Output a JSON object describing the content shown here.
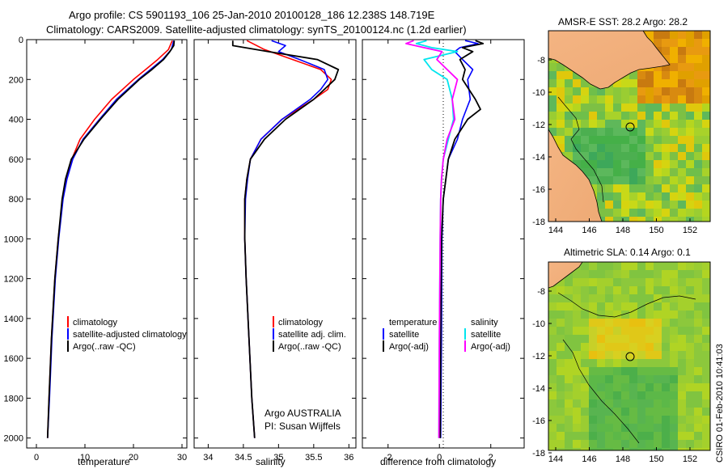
{
  "header": {
    "line1": "Argo profile: CS 5901193_106 25-Jan-2010 20100128_186 12.238S 148.719E",
    "line2": "Climatology: CARS2009. Satellite-adjusted climatology: synTS_20100124.nc (1.2d earlier)"
  },
  "colors": {
    "climatology": "#ff0000",
    "satellite": "#0000ff",
    "argo": "#000000",
    "salinity_satellite": "#00e5ee",
    "salinity_argo": "#ff00ff",
    "land": "#f4b482"
  },
  "chart_data": [
    {
      "type": "line",
      "id": "temperature",
      "xlabel": "temperature",
      "ylabel": "",
      "xlim": [
        -2,
        31
      ],
      "ylim": [
        2050,
        0
      ],
      "xticks": [
        "0",
        "10",
        "20",
        "30"
      ],
      "yticks": [
        "0",
        "200",
        "400",
        "600",
        "800",
        "1000",
        "1200",
        "1400",
        "1600",
        "1800",
        "2000"
      ],
      "legend": [
        "climatology",
        "satellite-adjusted climatology",
        "Argo(..raw -QC)"
      ],
      "series": [
        {
          "name": "climatology",
          "depth": [
            5,
            50,
            100,
            150,
            200,
            300,
            400,
            500,
            600,
            700,
            800,
            1000,
            1200,
            1500,
            1800,
            2000
          ],
          "values": [
            28.0,
            27.2,
            25.0,
            22.5,
            20.0,
            15.5,
            12.0,
            9.0,
            7.3,
            6.2,
            5.4,
            4.5,
            3.8,
            3.1,
            2.6,
            2.3
          ]
        },
        {
          "name": "satellite-adjusted climatology",
          "depth": [
            5,
            50,
            100,
            150,
            200,
            300,
            400,
            500,
            600,
            700,
            800,
            1000,
            1200,
            1500,
            1800,
            2000
          ],
          "values": [
            28.3,
            27.8,
            26.0,
            23.5,
            21.0,
            16.5,
            13.0,
            9.6,
            7.5,
            6.3,
            5.5,
            4.6,
            3.9,
            3.2,
            2.7,
            2.3
          ]
        },
        {
          "name": "Argo(..raw -QC)",
          "depth": [
            5,
            30,
            60,
            100,
            150,
            200,
            300,
            400,
            500,
            600,
            700,
            800,
            1000,
            1200,
            1500,
            1800,
            2000
          ],
          "values": [
            28.4,
            28.3,
            27.5,
            26.2,
            23.8,
            21.2,
            16.8,
            13.2,
            9.8,
            7.2,
            6.0,
            5.3,
            4.5,
            3.8,
            3.1,
            2.6,
            2.3
          ]
        }
      ]
    },
    {
      "type": "line",
      "id": "salinity",
      "xlabel": "salinity",
      "ylabel": "",
      "xlim": [
        33.8,
        36.1
      ],
      "ylim": [
        2050,
        0
      ],
      "xticks": [
        "34",
        "34.5",
        "35",
        "35.5",
        "36"
      ],
      "legend": [
        "climatology",
        "satellite adj. clim.",
        "Argo(..raw -QC)"
      ],
      "series": [
        {
          "name": "climatology",
          "depth": [
            5,
            50,
            100,
            150,
            200,
            250,
            300,
            400,
            500,
            600,
            700,
            800,
            1000,
            1200,
            1500,
            1800,
            2000
          ],
          "values": [
            34.55,
            34.8,
            35.2,
            35.6,
            35.75,
            35.7,
            35.5,
            35.05,
            34.75,
            34.6,
            34.55,
            34.52,
            34.52,
            34.54,
            34.58,
            34.62,
            34.66
          ]
        },
        {
          "name": "satellite adj. clim.",
          "depth": [
            5,
            30,
            60,
            100,
            150,
            200,
            250,
            300,
            400,
            500,
            600,
            700,
            800,
            1000,
            1200,
            1500,
            1800,
            2000
          ],
          "values": [
            34.9,
            35.1,
            35.0,
            35.3,
            35.65,
            35.7,
            35.6,
            35.45,
            35.05,
            34.75,
            34.6,
            34.56,
            34.53,
            34.52,
            34.54,
            34.58,
            34.62,
            34.66
          ]
        },
        {
          "name": "Argo(..raw -QC)",
          "depth": [
            5,
            30,
            60,
            100,
            150,
            200,
            250,
            300,
            400,
            500,
            600,
            700,
            800,
            1000,
            1200,
            1500,
            1800,
            2000
          ],
          "values": [
            34.35,
            34.35,
            34.85,
            35.55,
            35.85,
            35.8,
            35.65,
            35.5,
            35.1,
            34.8,
            34.6,
            34.55,
            34.52,
            34.52,
            34.54,
            34.58,
            34.62,
            34.66
          ]
        }
      ],
      "annotations": [
        "Argo AUSTRALIA",
        "PI: Susan Wijffels"
      ]
    },
    {
      "type": "line",
      "id": "difference",
      "xlabel": "difference from climatology",
      "ylabel": "",
      "xlim": [
        -3,
        3.3
      ],
      "ylim": [
        2050,
        0
      ],
      "xticks": [
        "-2",
        "0",
        "2"
      ],
      "legend_headers": [
        "temperature",
        "salinity"
      ],
      "legend": [
        "satellite",
        "Argo(-adj)",
        "satellite",
        "Argo(-adj)"
      ],
      "series": [
        {
          "name": "temperature satellite",
          "depth": [
            5,
            20,
            40,
            60,
            100,
            150,
            200,
            300,
            400,
            500,
            600,
            700,
            800,
            1000,
            1500,
            2000
          ],
          "values": [
            1.0,
            1.5,
            0.8,
            0.6,
            0.9,
            1.3,
            1.1,
            1.2,
            0.9,
            0.7,
            0.35,
            0.25,
            0.15,
            0.1,
            0.08,
            0.05
          ]
        },
        {
          "name": "temperature Argo(-adj)",
          "depth": [
            5,
            20,
            40,
            60,
            100,
            150,
            200,
            300,
            350,
            400,
            500,
            600,
            700,
            800,
            1000,
            1500,
            2000
          ],
          "values": [
            1.4,
            1.7,
            0.9,
            1.3,
            0.8,
            1.0,
            0.9,
            1.4,
            1.6,
            1.1,
            0.6,
            0.35,
            0.25,
            0.15,
            0.08,
            0.05,
            0.03
          ]
        },
        {
          "name": "salinity satellite",
          "depth": [
            5,
            20,
            40,
            60,
            100,
            150,
            200,
            300,
            400,
            500,
            600,
            700,
            800,
            1000,
            1500,
            2000
          ],
          "values": [
            -0.5,
            -0.9,
            -0.3,
            0.7,
            -0.6,
            -0.3,
            0.3,
            0.5,
            0.55,
            0.35,
            0.15,
            0.08,
            0.05,
            0.03,
            0.0,
            -0.02
          ]
        },
        {
          "name": "salinity Argo(-adj)",
          "depth": [
            5,
            20,
            40,
            60,
            100,
            150,
            200,
            300,
            400,
            500,
            600,
            700,
            800,
            1000,
            1500,
            2000
          ],
          "values": [
            -1.0,
            -1.3,
            -0.6,
            0.1,
            -0.1,
            0.3,
            0.7,
            0.5,
            0.6,
            0.3,
            0.15,
            0.08,
            0.05,
            0.03,
            0.0,
            -0.02
          ]
        }
      ]
    },
    {
      "type": "heatmap",
      "id": "sst-map",
      "title": "AMSR-E SST: 28.2 Argo: 28.2",
      "xticks": [
        "144",
        "146",
        "148",
        "150",
        "152"
      ],
      "yticks": [
        "-8",
        "-10",
        "-12",
        "-14",
        "-16",
        "-18"
      ],
      "argo_lon": 148.719,
      "argo_lat": -12.238
    },
    {
      "type": "heatmap",
      "id": "sla-map",
      "title": "Altimetric SLA: 0.14 Argo: 0.1",
      "xticks": [
        "144",
        "146",
        "148",
        "150",
        "152"
      ],
      "yticks": [
        "-8",
        "-10",
        "-12",
        "-14",
        "-16",
        "-18"
      ],
      "argo_lon": 148.719,
      "argo_lat": -12.238
    }
  ],
  "side_label": "CSIRO 01-Feb-2010 10:41:03"
}
